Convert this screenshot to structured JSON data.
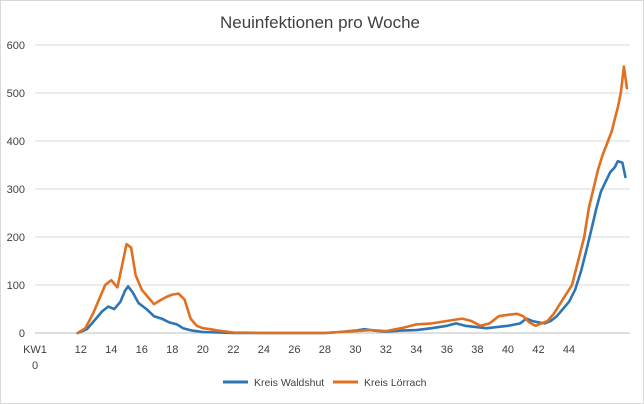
{
  "chart_data": {
    "type": "line",
    "title": "Neuinfektionen pro Woche",
    "ylim": [
      0,
      600
    ],
    "yticks": [
      "0",
      "100",
      "200",
      "300",
      "400",
      "500",
      "600"
    ],
    "xlim": [
      9,
      48
    ],
    "x_axis_first_label_lines": [
      "KW1",
      "0"
    ],
    "xticks": [
      {
        "x": 12,
        "label": "12"
      },
      {
        "x": 14,
        "label": "14"
      },
      {
        "x": 16,
        "label": "16"
      },
      {
        "x": 18,
        "label": "18"
      },
      {
        "x": 20,
        "label": "20"
      },
      {
        "x": 22,
        "label": "22"
      },
      {
        "x": 24,
        "label": "24"
      },
      {
        "x": 26,
        "label": "26"
      },
      {
        "x": 28,
        "label": "28"
      },
      {
        "x": 30,
        "label": "30"
      },
      {
        "x": 32,
        "label": "32"
      },
      {
        "x": 34,
        "label": "34"
      },
      {
        "x": 36,
        "label": "36"
      },
      {
        "x": 38,
        "label": "38"
      },
      {
        "x": 40,
        "label": "40"
      },
      {
        "x": 42,
        "label": "42"
      },
      {
        "x": 44,
        "label": "44"
      }
    ],
    "grid": true,
    "legend_position": "bottom",
    "series": [
      {
        "name": "Kreis Waldshut",
        "color": "#2e75b6",
        "points": [
          [
            11.8,
            0
          ],
          [
            12.4,
            8
          ],
          [
            13.0,
            30
          ],
          [
            13.4,
            45
          ],
          [
            13.8,
            55
          ],
          [
            14.2,
            50
          ],
          [
            14.6,
            65
          ],
          [
            14.9,
            88
          ],
          [
            15.1,
            97
          ],
          [
            15.4,
            85
          ],
          [
            15.8,
            62
          ],
          [
            16.3,
            50
          ],
          [
            16.8,
            35
          ],
          [
            17.3,
            30
          ],
          [
            17.8,
            22
          ],
          [
            18.3,
            18
          ],
          [
            18.7,
            10
          ],
          [
            19.3,
            5
          ],
          [
            20.0,
            2
          ],
          [
            21.0,
            1
          ],
          [
            22,
            0
          ],
          [
            24,
            0
          ],
          [
            26,
            0
          ],
          [
            28,
            0
          ],
          [
            29,
            2
          ],
          [
            30,
            5
          ],
          [
            30.6,
            8
          ],
          [
            31.2,
            5
          ],
          [
            32,
            3
          ],
          [
            33,
            5
          ],
          [
            34,
            6
          ],
          [
            35,
            10
          ],
          [
            36,
            15
          ],
          [
            36.6,
            20
          ],
          [
            37.2,
            15
          ],
          [
            38,
            12
          ],
          [
            38.6,
            10
          ],
          [
            39.2,
            12
          ],
          [
            40,
            15
          ],
          [
            40.8,
            20
          ],
          [
            41.2,
            30
          ],
          [
            41.6,
            25
          ],
          [
            42,
            22
          ],
          [
            42.4,
            20
          ],
          [
            42.8,
            25
          ],
          [
            43.2,
            35
          ],
          [
            43.6,
            50
          ],
          [
            44,
            65
          ],
          [
            44.4,
            90
          ],
          [
            44.8,
            130
          ],
          [
            45.2,
            180
          ],
          [
            45.5,
            220
          ],
          [
            45.8,
            260
          ],
          [
            46.1,
            295
          ],
          [
            46.4,
            315
          ],
          [
            46.7,
            335
          ],
          [
            47.0,
            345
          ],
          [
            47.2,
            358
          ],
          [
            47.5,
            355
          ],
          [
            47.7,
            325
          ]
        ]
      },
      {
        "name": "Kreis Lörrach",
        "color": "#e07020",
        "points": [
          [
            11.8,
            0
          ],
          [
            12.3,
            10
          ],
          [
            12.8,
            40
          ],
          [
            13.2,
            70
          ],
          [
            13.6,
            100
          ],
          [
            14.0,
            110
          ],
          [
            14.4,
            95
          ],
          [
            14.7,
            140
          ],
          [
            15.0,
            185
          ],
          [
            15.3,
            178
          ],
          [
            15.6,
            120
          ],
          [
            16.0,
            90
          ],
          [
            16.4,
            75
          ],
          [
            16.8,
            60
          ],
          [
            17.2,
            68
          ],
          [
            17.6,
            75
          ],
          [
            18.0,
            80
          ],
          [
            18.4,
            82
          ],
          [
            18.8,
            70
          ],
          [
            19.2,
            30
          ],
          [
            19.6,
            15
          ],
          [
            20.0,
            10
          ],
          [
            20.5,
            8
          ],
          [
            21.0,
            5
          ],
          [
            22,
            1
          ],
          [
            24,
            0
          ],
          [
            26,
            0
          ],
          [
            28,
            0
          ],
          [
            29,
            2
          ],
          [
            30,
            4
          ],
          [
            31,
            6
          ],
          [
            32,
            4
          ],
          [
            33,
            10
          ],
          [
            34,
            18
          ],
          [
            35,
            20
          ],
          [
            36,
            25
          ],
          [
            37,
            30
          ],
          [
            37.6,
            25
          ],
          [
            38.2,
            15
          ],
          [
            38.8,
            20
          ],
          [
            39.4,
            35
          ],
          [
            40,
            38
          ],
          [
            40.6,
            40
          ],
          [
            41.0,
            35
          ],
          [
            41.4,
            22
          ],
          [
            41.8,
            15
          ],
          [
            42.2,
            20
          ],
          [
            42.6,
            25
          ],
          [
            43.0,
            40
          ],
          [
            43.4,
            60
          ],
          [
            43.8,
            80
          ],
          [
            44.2,
            100
          ],
          [
            44.6,
            150
          ],
          [
            45.0,
            200
          ],
          [
            45.3,
            260
          ],
          [
            45.6,
            300
          ],
          [
            45.9,
            340
          ],
          [
            46.2,
            370
          ],
          [
            46.5,
            395
          ],
          [
            46.8,
            420
          ],
          [
            47.0,
            445
          ],
          [
            47.2,
            470
          ],
          [
            47.4,
            500
          ],
          [
            47.6,
            555
          ],
          [
            47.8,
            510
          ]
        ]
      }
    ]
  }
}
